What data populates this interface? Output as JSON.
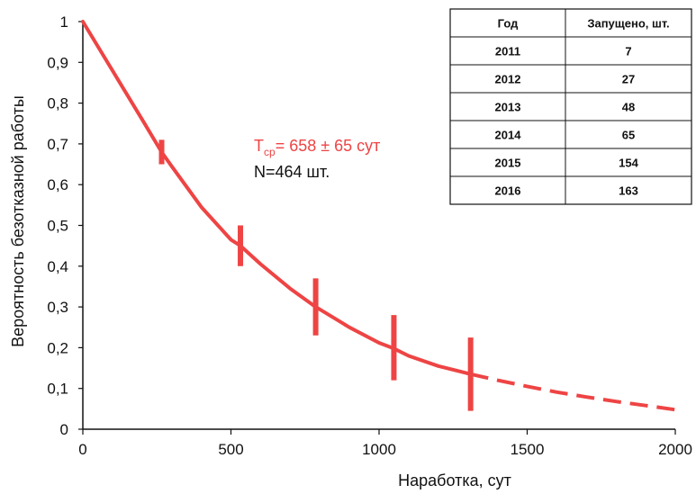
{
  "chart_data": {
    "type": "line",
    "xlabel": "Наработка, сут",
    "ylabel": "Вероятность безотказной работы",
    "xlim": [
      0,
      2000
    ],
    "ylim": [
      0,
      1
    ],
    "x_ticks": [
      "0",
      "500",
      "1000",
      "1500",
      "2000"
    ],
    "y_ticks": [
      "0",
      "0,1",
      "0,2",
      "0,3",
      "0,4",
      "0,5",
      "0,6",
      "0,7",
      "0,8",
      "0,9",
      "1"
    ],
    "grid": false,
    "line_color": "#ee4444",
    "text_color": "#111111",
    "curve": {
      "x": [
        0,
        100,
        200,
        266,
        300,
        400,
        500,
        532,
        600,
        700,
        786,
        800,
        900,
        1000,
        1050,
        1100,
        1200,
        1309
      ],
      "y": [
        1.0,
        0.88,
        0.76,
        0.68,
        0.645,
        0.545,
        0.465,
        0.45,
        0.405,
        0.345,
        0.3,
        0.294,
        0.25,
        0.212,
        0.198,
        0.18,
        0.155,
        0.135
      ]
    },
    "extrapolation": {
      "style": "dashed",
      "x": [
        1309,
        1400,
        1500,
        1600,
        1700,
        1800,
        1900,
        2000
      ],
      "y": [
        0.135,
        0.12,
        0.105,
        0.091,
        0.079,
        0.068,
        0.058,
        0.048
      ]
    },
    "error_bars": [
      {
        "x": 266,
        "y": 0.68,
        "low": 0.65,
        "high": 0.71
      },
      {
        "x": 532,
        "y": 0.45,
        "low": 0.4,
        "high": 0.5
      },
      {
        "x": 786,
        "y": 0.3,
        "low": 0.23,
        "high": 0.37
      },
      {
        "x": 1050,
        "y": 0.2,
        "low": 0.12,
        "high": 0.28
      },
      {
        "x": 1309,
        "y": 0.135,
        "low": 0.045,
        "high": 0.225
      }
    ],
    "annotations": {
      "t_main": "T",
      "t_sub": "ср",
      "t_value": "= 658 ± 65 сут",
      "n_label": "N=464 шт."
    },
    "table": {
      "headers": [
        "Год",
        "Запущено, шт."
      ],
      "rows": [
        [
          "2011",
          "7"
        ],
        [
          "2012",
          "27"
        ],
        [
          "2013",
          "48"
        ],
        [
          "2014",
          "65"
        ],
        [
          "2015",
          "154"
        ],
        [
          "2016",
          "163"
        ]
      ]
    }
  }
}
